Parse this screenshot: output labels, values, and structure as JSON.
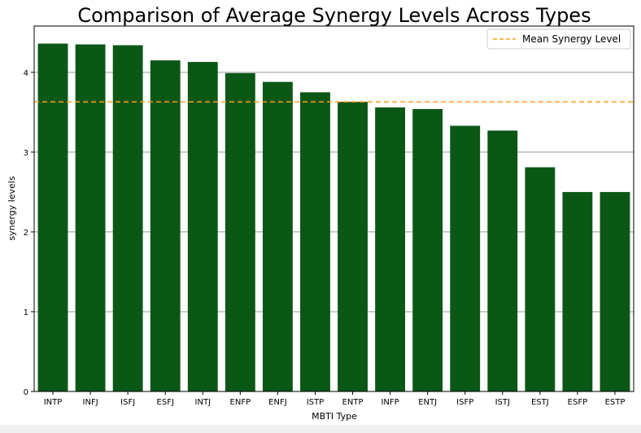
{
  "chart_data": {
    "type": "bar",
    "title": "Comparison of Average Synergy Levels Across Types",
    "xlabel": "MBTI Type",
    "ylabel": "synergy levels",
    "categories": [
      "INTP",
      "INFJ",
      "ISFJ",
      "ESFJ",
      "INTJ",
      "ENFP",
      "ENFJ",
      "ISTP",
      "ENTP",
      "INFP",
      "ENTJ",
      "ISFP",
      "ISTJ",
      "ESTJ",
      "ESFP",
      "ESTP"
    ],
    "values": [
      4.36,
      4.35,
      4.34,
      4.15,
      4.13,
      3.99,
      3.88,
      3.75,
      3.63,
      3.56,
      3.54,
      3.33,
      3.27,
      2.81,
      2.5,
      2.5
    ],
    "ylim": [
      0,
      4.58
    ],
    "yticks": [
      0,
      1,
      2,
      3,
      4
    ],
    "grid": "horizontal",
    "bar_color": "#0b5716",
    "mean_line": {
      "label": "Mean Synergy Level",
      "value": 3.63,
      "color": "#ff9f1c",
      "style": "dashed"
    },
    "legend": "top-right"
  }
}
